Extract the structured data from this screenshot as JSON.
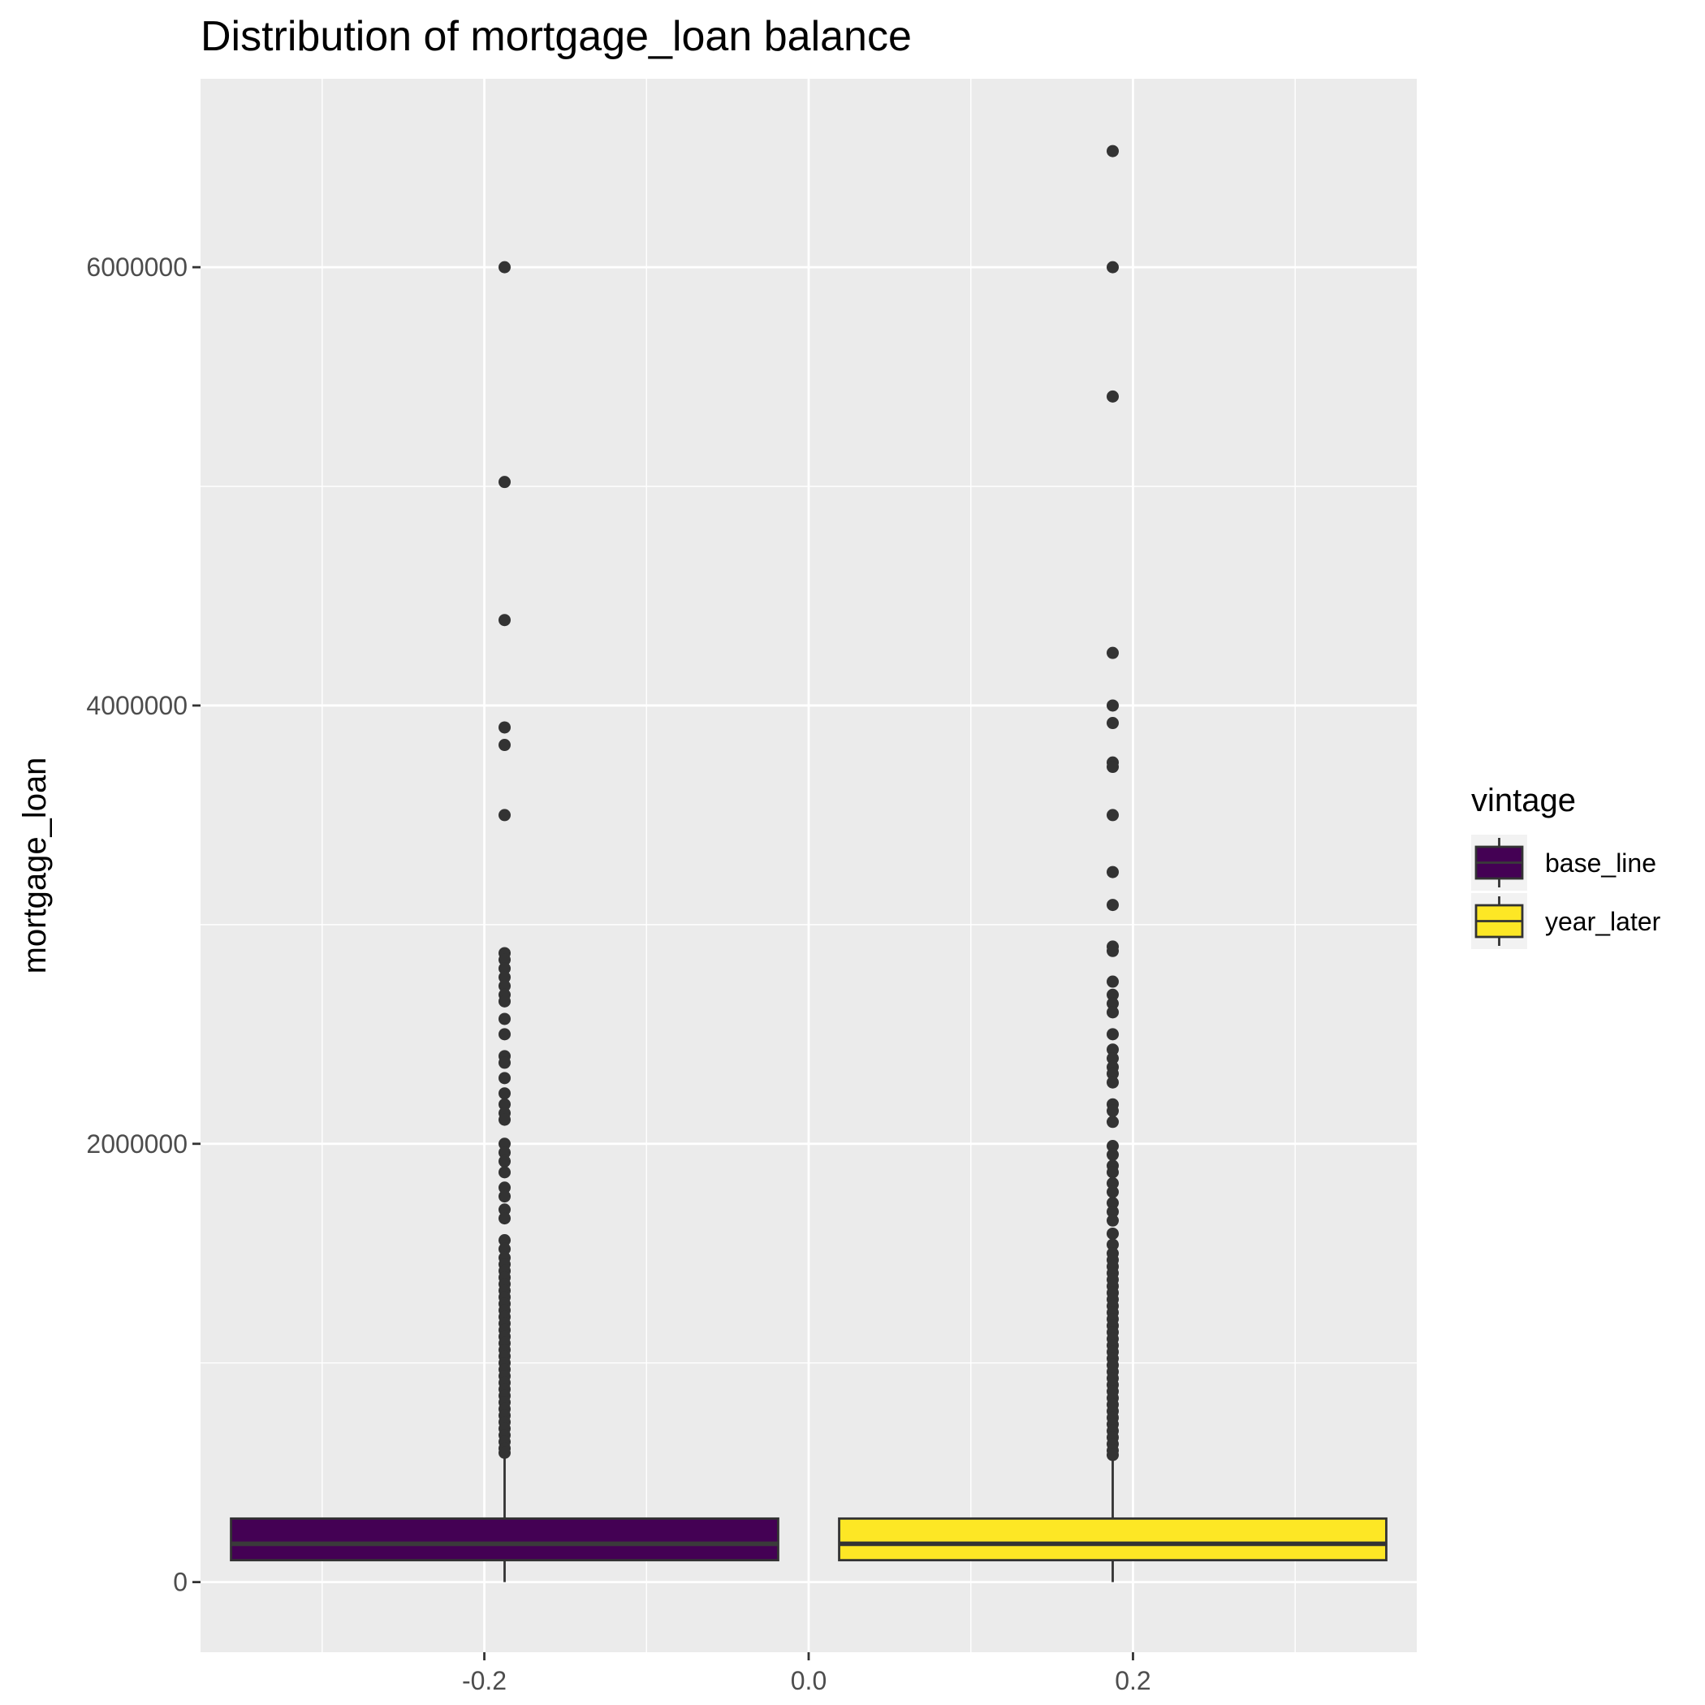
{
  "chart_data": {
    "type": "boxplot",
    "title": "Distribution of mortgage_loan balance",
    "xlabel": "",
    "ylabel": "mortgage_loan",
    "xlim": [
      -0.375,
      0.375
    ],
    "ylim": [
      -320000,
      6860000
    ],
    "x_ticks": [
      -0.2,
      0.0,
      0.2
    ],
    "x_tick_labels": [
      "-0.2",
      "0.0",
      "0.2"
    ],
    "y_ticks": [
      0,
      2000000,
      4000000,
      6000000
    ],
    "y_tick_labels": [
      "0",
      "2000000",
      "4000000",
      "6000000"
    ],
    "grid": true,
    "legend": {
      "title": "vintage",
      "position": "right"
    },
    "series": [
      {
        "name": "base_line",
        "color": "#440154",
        "median_color": "#3a3a3a",
        "x_center": -0.1875,
        "x_min": -0.3562,
        "x_max": -0.0188,
        "whisker_low": 0,
        "q1": 100000,
        "median": 175000,
        "q3": 290000,
        "whisker_high": 570000,
        "outliers": [
          6000000,
          5020000,
          4390000,
          3900000,
          3820000,
          3500000,
          2870000,
          2840000,
          2800000,
          2760000,
          2720000,
          2680000,
          2650000,
          2570000,
          2500000,
          2400000,
          2370000,
          2300000,
          2230000,
          2180000,
          2140000,
          2110000,
          2000000,
          1960000,
          1920000,
          1870000,
          1800000,
          1760000,
          1700000,
          1660000,
          1560000,
          1520000,
          1480000,
          1450000,
          1420000,
          1390000,
          1360000,
          1330000,
          1300000,
          1270000,
          1240000,
          1210000,
          1180000,
          1150000,
          1120000,
          1090000,
          1060000,
          1030000,
          1000000,
          970000,
          940000,
          910000,
          880000,
          850000,
          820000,
          790000,
          760000,
          730000,
          700000,
          670000,
          640000,
          610000,
          590000
        ]
      },
      {
        "name": "year_later",
        "color": "#fde725",
        "median_color": "#333333",
        "x_center": 0.1875,
        "x_min": 0.0188,
        "x_max": 0.3562,
        "whisker_low": 0,
        "q1": 100000,
        "median": 175000,
        "q3": 290000,
        "whisker_high": 570000,
        "outliers": [
          6530000,
          6000000,
          5410000,
          4240000,
          4000000,
          3920000,
          3740000,
          3720000,
          3500000,
          3240000,
          3090000,
          2900000,
          2880000,
          2740000,
          2680000,
          2640000,
          2600000,
          2500000,
          2430000,
          2390000,
          2350000,
          2320000,
          2280000,
          2180000,
          2150000,
          2100000,
          1990000,
          1950000,
          1900000,
          1870000,
          1820000,
          1780000,
          1730000,
          1690000,
          1650000,
          1590000,
          1540000,
          1500000,
          1470000,
          1440000,
          1410000,
          1380000,
          1350000,
          1320000,
          1290000,
          1260000,
          1230000,
          1200000,
          1170000,
          1140000,
          1110000,
          1080000,
          1050000,
          1020000,
          990000,
          960000,
          930000,
          900000,
          870000,
          840000,
          810000,
          780000,
          750000,
          720000,
          690000,
          660000,
          630000,
          600000,
          580000
        ]
      }
    ]
  }
}
